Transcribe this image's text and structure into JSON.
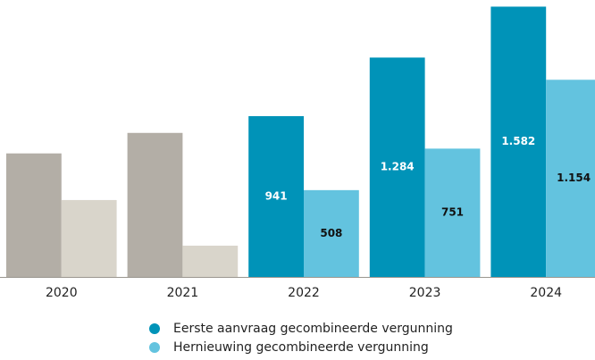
{
  "chart_data": {
    "type": "bar",
    "categories": [
      "2020",
      "2021",
      "2022",
      "2023",
      "2024"
    ],
    "series": [
      {
        "name": "Eerste aanvraag gecombineerde vergunning",
        "color": "#0093b8",
        "colors": [
          "#b3aea6",
          "#b3aea6",
          "#0093b8",
          "#0093b8",
          "#0093b8"
        ],
        "label_color": "#ffffff",
        "values": [
          723,
          843,
          941,
          1284,
          1582
        ],
        "value_labels": [
          null,
          null,
          "941",
          "1.284",
          "1.582"
        ]
      },
      {
        "name": "Hernieuwing gecombineerde vergunning",
        "color": "#63c3df",
        "colors": [
          "#d9d5cb",
          "#d9d5cb",
          "#63c3df",
          "#63c3df",
          "#63c3df"
        ],
        "label_color": "#111111",
        "values": [
          450,
          183,
          508,
          751,
          1154
        ],
        "value_labels": [
          null,
          null,
          "508",
          "751",
          "1.154"
        ]
      }
    ],
    "ylim": [
      0,
      1600
    ]
  }
}
